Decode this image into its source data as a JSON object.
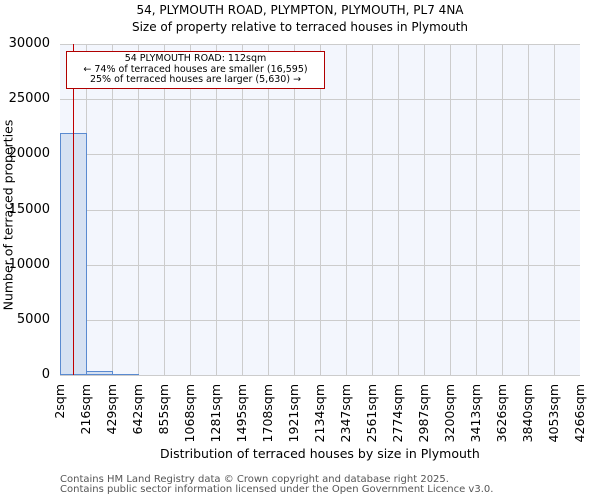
{
  "header": {
    "title_line1": "54, PLYMOUTH ROAD, PLYMPTON, PLYMOUTH, PL7 4NA",
    "title_line2": "Size of property relative to terraced houses in Plymouth"
  },
  "annotation": {
    "line1": "54 PLYMOUTH ROAD: 112sqm",
    "line2": "← 74% of terraced houses are smaller (16,595)",
    "line3": "25% of terraced houses are larger (5,630) →"
  },
  "axes": {
    "ylabel": "Number of terraced properties",
    "xlabel": "Distribution of terraced houses by size in Plymouth",
    "yticks": [
      "0",
      "5000",
      "10000",
      "15000",
      "20000",
      "25000",
      "30000"
    ],
    "xticks": [
      "2sqm",
      "216sqm",
      "429sqm",
      "642sqm",
      "855sqm",
      "1068sqm",
      "1281sqm",
      "1495sqm",
      "1708sqm",
      "1921sqm",
      "2134sqm",
      "2347sqm",
      "2561sqm",
      "2774sqm",
      "2987sqm",
      "3200sqm",
      "3413sqm",
      "3626sqm",
      "3840sqm",
      "4053sqm",
      "4266sqm"
    ]
  },
  "footer": {
    "line1": "Contains HM Land Registry data © Crown copyright and database right 2025.",
    "line2": "Contains public sector information licensed under the Open Government Licence v3.0."
  },
  "colors": {
    "bar_fill": "#d6e1f2",
    "bar_edge": "#5a8ad0",
    "marker": "#c00000",
    "plot_bg": "#f3f6fd"
  },
  "chart_data": {
    "type": "bar",
    "title": "54, PLYMOUTH ROAD, PLYMPTON, PLYMOUTH, PL7 4NA — Size of property relative to terraced houses in Plymouth",
    "xlabel": "Distribution of terraced houses by size in Plymouth",
    "ylabel": "Number of terraced properties",
    "categories": [
      "2-216sqm",
      "216-429sqm",
      "429-642sqm",
      "642-855sqm",
      "855-1068sqm",
      "1068-1281sqm",
      "1281-1495sqm",
      "1495-1708sqm",
      "1708-1921sqm",
      "1921-2134sqm",
      "2134-2347sqm",
      "2347-2561sqm",
      "2561-2774sqm",
      "2774-2987sqm",
      "2987-3200sqm",
      "3200-3413sqm",
      "3413-3626sqm",
      "3626-3840sqm",
      "3840-4053sqm",
      "4053-4266sqm"
    ],
    "values": [
      21900,
      320,
      5,
      0,
      0,
      0,
      0,
      0,
      0,
      0,
      0,
      0,
      0,
      0,
      0,
      0,
      0,
      0,
      0,
      0
    ],
    "ylim": [
      0,
      30000
    ],
    "grid": true,
    "marker": {
      "x": 112,
      "label": "54 PLYMOUTH ROAD: 112sqm"
    },
    "annotations": [
      "54 PLYMOUTH ROAD: 112sqm",
      "← 74% of terraced houses are smaller (16,595)",
      "25% of terraced houses are larger (5,630) →"
    ]
  }
}
